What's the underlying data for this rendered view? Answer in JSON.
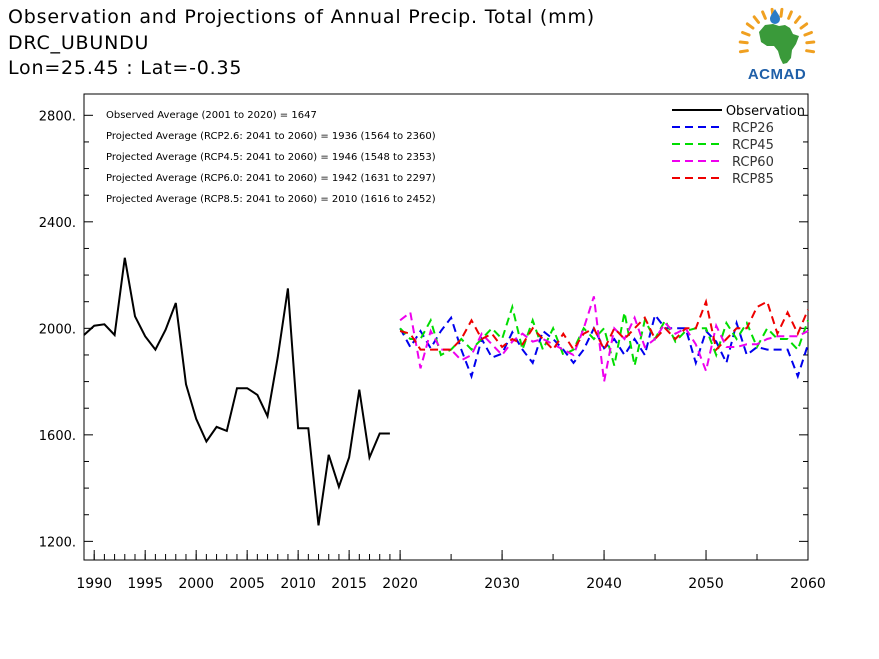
{
  "title": {
    "line1": "Observation and Projections of Annual Precip. Total (mm)",
    "line2": "DRC_UBUNDU",
    "line3": "Lon=25.45 : Lat=-0.35"
  },
  "logo": {
    "text": "ACMAD",
    "icon": "africa-map-sun-logo",
    "colors": {
      "africa": "#3a9a3a",
      "sun": "#f0a020",
      "drop": "#2a7cc7",
      "text": "#1f5fa8"
    }
  },
  "annotations": [
    "Observed Average (2001 to 2020) = 1647",
    "Projected Average (RCP2.6: 2041 to 2060) = 1936 (1564 to 2360)",
    "Projected Average (RCP4.5: 2041 to 2060) = 1946 (1548 to 2353)",
    "Projected Average (RCP6.0: 2041 to 2060) = 1942 (1631 to 2297)",
    "Projected Average (RCP8.5: 2041 to 2060) = 2010 (1616 to 2452)"
  ],
  "chart_data": {
    "type": "line",
    "xlim": [
      1989,
      2060
    ],
    "ylim": [
      1130,
      2880
    ],
    "x_ticks": [
      "1990",
      "1995",
      "2000",
      "2005",
      "2010",
      "2015",
      "2020",
      "2030",
      "2040",
      "2050",
      "2060"
    ],
    "x_tick_values": [
      1990,
      1995,
      2000,
      2005,
      2010,
      2015,
      2020,
      2030,
      2040,
      2050,
      2060
    ],
    "y_ticks": [
      "1200.",
      "1600.",
      "2000.",
      "2400.",
      "2800."
    ],
    "y_tick_values": [
      1200,
      1600,
      2000,
      2400,
      2800
    ],
    "legend_position": "top-right",
    "series": [
      {
        "name": "Observation",
        "color": "#000000",
        "style": "solid",
        "x": [
          1989,
          1990,
          1991,
          1992,
          1993,
          1994,
          1995,
          1996,
          1997,
          1998,
          1999,
          2000,
          2001,
          2002,
          2003,
          2004,
          2005,
          2006,
          2007,
          2008,
          2009,
          2010,
          2011,
          2012,
          2013,
          2014,
          2015,
          2016,
          2017,
          2018,
          2019
        ],
        "values": [
          1975,
          2010,
          2015,
          1975,
          2265,
          2045,
          1970,
          1920,
          1995,
          2095,
          1790,
          1660,
          1575,
          1630,
          1615,
          1775,
          1775,
          1750,
          1670,
          1890,
          2150,
          1625,
          1625,
          1260,
          1525,
          1405,
          1515,
          1770,
          1515,
          1605,
          1605
        ]
      },
      {
        "name": "RCP26",
        "color": "#0000ee",
        "style": "dashed",
        "x": [
          2020,
          2021,
          2022,
          2023,
          2024,
          2025,
          2026,
          2027,
          2028,
          2029,
          2030,
          2031,
          2032,
          2033,
          2034,
          2035,
          2036,
          2037,
          2038,
          2039,
          2040,
          2041,
          2042,
          2043,
          2044,
          2045,
          2046,
          2047,
          2048,
          2049,
          2050,
          2051,
          2052,
          2053,
          2054,
          2055,
          2056,
          2057,
          2058,
          2059,
          2060
        ],
        "values": [
          2000,
          1930,
          1990,
          1925,
          1990,
          2040,
          1920,
          1820,
          1960,
          1890,
          1905,
          1985,
          1920,
          1870,
          1990,
          1960,
          1920,
          1870,
          1920,
          2000,
          1925,
          1960,
          1900,
          1960,
          1900,
          2050,
          2000,
          2000,
          2000,
          1870,
          1990,
          1950,
          1870,
          2020,
          1900,
          1930,
          1920,
          1920,
          1920,
          1820,
          1940
        ]
      },
      {
        "name": "RCP45",
        "color": "#00dd00",
        "style": "dashed",
        "x": [
          2020,
          2021,
          2022,
          2023,
          2024,
          2025,
          2026,
          2027,
          2028,
          2029,
          2030,
          2031,
          2032,
          2033,
          2034,
          2035,
          2036,
          2037,
          2038,
          2039,
          2040,
          2041,
          2042,
          2043,
          2044,
          2045,
          2046,
          2047,
          2048,
          2049,
          2050,
          2051,
          2052,
          2053,
          2054,
          2055,
          2056,
          2057,
          2058,
          2059,
          2060
        ],
        "values": [
          2000,
          1960,
          1960,
          2030,
          1900,
          1920,
          1960,
          1920,
          1960,
          2000,
          1960,
          2080,
          1920,
          2030,
          1920,
          2000,
          1900,
          1920,
          2000,
          1960,
          2000,
          1860,
          2060,
          1860,
          2030,
          1960,
          2030,
          1950,
          1990,
          2000,
          2000,
          1900,
          2020,
          1960,
          2020,
          1930,
          2000,
          1960,
          1960,
          1920,
          2030
        ]
      },
      {
        "name": "RCP60",
        "color": "#ee00ee",
        "style": "dashed",
        "x": [
          2020,
          2021,
          2022,
          2023,
          2024,
          2025,
          2026,
          2027,
          2028,
          2029,
          2030,
          2031,
          2032,
          2033,
          2034,
          2035,
          2036,
          2037,
          2038,
          2039,
          2040,
          2041,
          2042,
          2043,
          2044,
          2045,
          2046,
          2047,
          2048,
          2049,
          2050,
          2051,
          2052,
          2053,
          2054,
          2055,
          2056,
          2057,
          2058,
          2059,
          2060
        ],
        "values": [
          2030,
          2060,
          1850,
          1990,
          1920,
          1920,
          1880,
          1900,
          1980,
          1940,
          1900,
          1950,
          1980,
          1950,
          1960,
          1940,
          1920,
          1900,
          2000,
          2120,
          1800,
          2000,
          1960,
          2040,
          1930,
          1960,
          2020,
          1980,
          2000,
          1940,
          1840,
          2010,
          1930,
          1930,
          1940,
          1940,
          1960,
          1970,
          1970,
          1970,
          1990
        ]
      },
      {
        "name": "RCP85",
        "color": "#ee0000",
        "style": "dashed",
        "x": [
          2020,
          2021,
          2022,
          2023,
          2024,
          2025,
          2026,
          2027,
          2028,
          2029,
          2030,
          2031,
          2032,
          2033,
          2034,
          2035,
          2036,
          2037,
          2038,
          2039,
          2040,
          2041,
          2042,
          2043,
          2044,
          2045,
          2046,
          2047,
          2048,
          2049,
          2050,
          2051,
          2052,
          2053,
          2054,
          2055,
          2056,
          2057,
          2058,
          2059,
          2060
        ],
        "values": [
          1990,
          1980,
          1920,
          1920,
          1920,
          1920,
          1960,
          2030,
          1960,
          1980,
          1930,
          1960,
          1940,
          2000,
          1960,
          1920,
          1980,
          1920,
          1980,
          2000,
          1920,
          2000,
          1960,
          2000,
          2040,
          1960,
          2000,
          1960,
          2000,
          2000,
          2100,
          1920,
          1960,
          2000,
          2000,
          2080,
          2100,
          1980,
          2060,
          1980,
          2070
        ]
      }
    ]
  }
}
